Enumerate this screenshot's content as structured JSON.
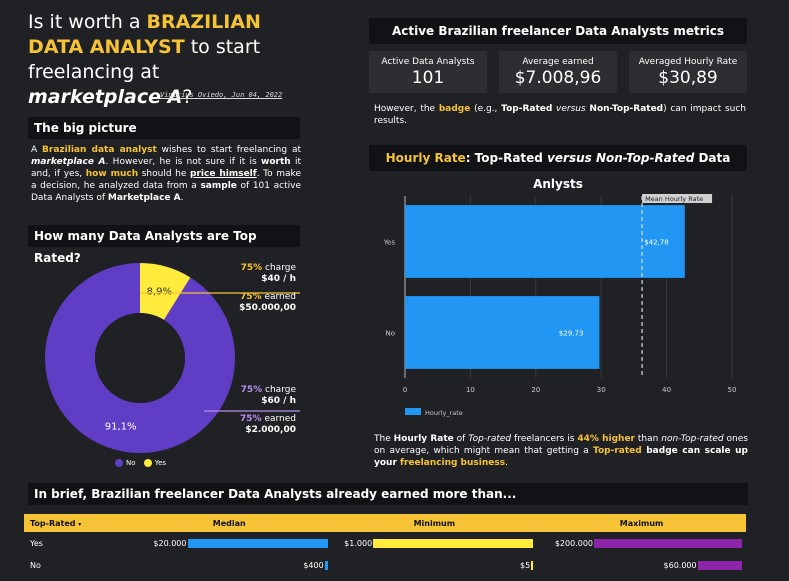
{
  "title": {
    "pre": "Is it worth a ",
    "hl1": "BRAZILIAN DATA ANALYST",
    "mid": " to start freelancing at ",
    "hl2": "marketplace A",
    "post": "?"
  },
  "byline": "Vinicius Oviedo, Jun 04, 2022",
  "big_picture": {
    "heading": "The big picture",
    "p1": "A ",
    "p2": "Brazilian data analyst",
    "p3": " wishes to start freelancing at ",
    "p4": "marketplace A",
    "p5": ". However, he is not sure if it is ",
    "p6": "worth",
    "p7": " it and, if yes, ",
    "p8": "how much",
    "p9": " should he ",
    "p10": "price himself",
    "p11": ". To make a decision, he analyzed data from a ",
    "p12": "sample",
    "p13": " of 101 active Data Analysts of ",
    "p14": "Marketplace A",
    "p15": "."
  },
  "donut_section": {
    "heading": "How many Data Analysts are Top Rated?",
    "yes_charge_pct": "75%",
    "yes_charge_txt": " charge",
    "yes_charge_val": "$40 / h",
    "yes_earned_pct": "75%",
    "yes_earned_txt": " earned",
    "yes_earned_val": "$50.000,00",
    "no_charge_pct": "75%",
    "no_charge_txt": " charge",
    "no_charge_val": "$60 / h",
    "no_earned_pct": "75%",
    "no_earned_txt": " earned",
    "no_earned_val": "$2.000,00",
    "legend_no": "No",
    "legend_yes": "Yes"
  },
  "metrics": {
    "heading": "Active Brazilian freelancer Data Analysts metrics",
    "kpis": [
      {
        "label": "Active Data Analysts",
        "value": "101"
      },
      {
        "label": "Average earned",
        "value": "$7.008,96"
      },
      {
        "label": "Averaged Hourly Rate",
        "value": "$30,89"
      }
    ],
    "note_a": "However, the ",
    "note_b": "badge",
    "note_c": " (e.g., ",
    "note_d": "Top-Rated",
    "note_e": " versus ",
    "note_f": "Non-Top-Rated",
    "note_g": ") can impact such results."
  },
  "hourly_section": {
    "heading_a": "Hourly Rate",
    "heading_b": ": Top-Rated ",
    "heading_c": "versus",
    "heading_d": " Non-Top-Rated",
    "heading_e": " Data Anlysts",
    "conc_a": "The ",
    "conc_b": "Hourly Rate",
    "conc_c": " of ",
    "conc_d": "Top-rated",
    "conc_e": " freelancers is ",
    "conc_f": "44% higher",
    "conc_g": " than ",
    "conc_h": "non-Top-rated",
    "conc_i": " ones on average, which might mean that getting a ",
    "conc_j": "Top-rated",
    "conc_k": " badge can scale up your ",
    "conc_l": "freelancing business",
    "conc_m": "."
  },
  "summary": {
    "heading": "In brief, Brazilian freelancer Data Analysts already earned more than...",
    "col_toprated": "Top-Rated",
    "sort_icon": "▾",
    "col_median": "Median",
    "col_min": "Minimum",
    "col_max": "Maximum",
    "rows": [
      {
        "label": "Yes",
        "median": "$20.000",
        "min": "$1.000",
        "max": "$200.000"
      },
      {
        "label": "No",
        "median": "$400",
        "min": "$5",
        "max": "$60.000"
      }
    ]
  },
  "colors": {
    "accent": "#f5c335",
    "purple": "#5f3dc4",
    "blue": "#2196f3",
    "dark": "#111215",
    "max_bar": "#8e24aa"
  },
  "chart_data": [
    {
      "type": "pie",
      "categories": [
        "No",
        "Yes"
      ],
      "values": [
        91.1,
        8.9
      ],
      "labels": [
        "91,1%",
        "8,9%"
      ],
      "colors": [
        "#5f3dc4",
        "#ffeb3b"
      ],
      "legend": "bottom"
    },
    {
      "type": "bar",
      "orientation": "horizontal",
      "categories": [
        "Yes",
        "No"
      ],
      "values": [
        42.78,
        29.73
      ],
      "data_labels": [
        "$42,78",
        "$29,73"
      ],
      "series": [
        {
          "name": "Hourly_rate",
          "values": [
            42.78,
            29.73
          ]
        }
      ],
      "xlim": [
        0,
        50
      ],
      "xticks": [
        "0",
        "10",
        "20",
        "30",
        "40",
        "50"
      ],
      "reference_line": {
        "label": "Mean Hourly Rate",
        "value": 36.25
      },
      "legend": "bottom-left",
      "grid": true
    },
    {
      "type": "table",
      "columns": [
        "Top-Rated",
        "Median",
        "Minimum",
        "Maximum"
      ],
      "rows": [
        {
          "Top-Rated": "Yes",
          "Median": 20000,
          "Minimum": 1000,
          "Maximum": 200000
        },
        {
          "Top-Rated": "No",
          "Median": 400,
          "Minimum": 5,
          "Maximum": 60000
        }
      ]
    }
  ]
}
